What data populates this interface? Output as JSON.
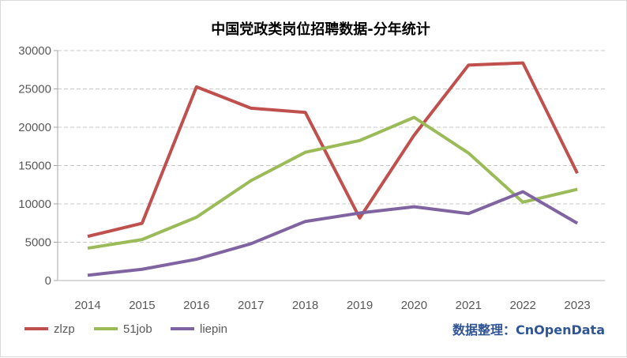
{
  "chart_data": {
    "type": "line",
    "title": "中国党政类岗位招聘数据-分年统计",
    "categories": [
      "2014",
      "2015",
      "2016",
      "2017",
      "2018",
      "2019",
      "2020",
      "2021",
      "2022",
      "2023"
    ],
    "ylim": [
      0,
      30000
    ],
    "yticks": [
      "0",
      "5000",
      "10000",
      "15000",
      "20000",
      "25000",
      "30000"
    ],
    "grid": true,
    "legend": "bottom-left",
    "series": [
      {
        "name": "zlzp",
        "color": "#C0504D",
        "values": [
          5760,
          7470,
          25270,
          22490,
          21940,
          8160,
          18960,
          28110,
          28390,
          13990
        ]
      },
      {
        "name": "51job",
        "color": "#9BBB59",
        "values": [
          4220,
          5350,
          8260,
          13030,
          16730,
          18270,
          21290,
          16630,
          10220,
          11900
        ]
      },
      {
        "name": "liepin",
        "color": "#8064A2",
        "values": [
          690,
          1470,
          2780,
          4800,
          7710,
          8810,
          9630,
          8740,
          11590,
          7470
        ]
      }
    ],
    "source": "数据整理：CnOpenData"
  }
}
